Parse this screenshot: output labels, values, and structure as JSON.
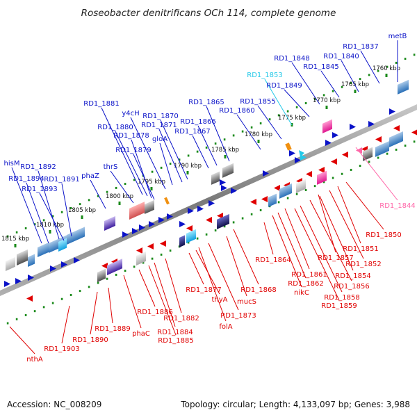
{
  "title": "Roseobacter denitrificans OCh 114, complete genome",
  "footer": {
    "accession": "Accession: NC_008209",
    "stats": "Topology: circular; Length: 4,133,097 bp; Genes: 3,988"
  },
  "colors": {
    "plus": "#0a12c8",
    "minus": "#e00000",
    "cyan": "#22c8e8",
    "pink": "#ff66a8",
    "orange": "#f09010",
    "tick": "#1a8a1a",
    "backbone": "#8a8a8a"
  },
  "scale_ticks": [
    {
      "label": "1760 kbp"
    },
    {
      "label": "1765 kbp"
    },
    {
      "label": "1770 kbp"
    },
    {
      "label": "1775 kbp"
    },
    {
      "label": "1780 kbp"
    },
    {
      "label": "1785 kbp"
    },
    {
      "label": "1790 kbp"
    },
    {
      "label": "1795 kbp"
    },
    {
      "label": "1800 kbp"
    },
    {
      "label": "1805 kbp"
    },
    {
      "label": "1810 kbp"
    },
    {
      "label": "1815 kbp"
    }
  ],
  "genes_top": [
    {
      "label": "metB",
      "color": "plus"
    },
    {
      "label": "RD1_1837",
      "color": "plus"
    },
    {
      "label": "RD1_1840",
      "color": "plus"
    },
    {
      "label": "RD1_1845",
      "color": "plus"
    },
    {
      "label": "RD1_1848",
      "color": "plus"
    },
    {
      "label": "RD1_1849",
      "color": "plus"
    },
    {
      "label": "RD1_1853",
      "color": "cyan"
    },
    {
      "label": "RD1_1855",
      "color": "plus"
    },
    {
      "label": "RD1_1860",
      "color": "plus"
    },
    {
      "label": "RD1_1865",
      "color": "plus"
    },
    {
      "label": "RD1_1866",
      "color": "plus"
    },
    {
      "label": "RD1_1867",
      "color": "plus"
    },
    {
      "label": "RD1_1870",
      "color": "plus"
    },
    {
      "label": "RD1_1871",
      "color": "plus"
    },
    {
      "label": "y4cH",
      "color": "plus"
    },
    {
      "label": "gloA",
      "color": "plus"
    },
    {
      "label": "RD1_1881",
      "color": "plus"
    },
    {
      "label": "RD1_1880",
      "color": "plus"
    },
    {
      "label": "RD1_1878",
      "color": "plus"
    },
    {
      "label": "RD1_1879",
      "color": "plus"
    },
    {
      "label": "thrS",
      "color": "plus"
    },
    {
      "label": "phaZ",
      "color": "plus"
    },
    {
      "label": "hisM",
      "color": "plus"
    },
    {
      "label": "RD1_1892",
      "color": "plus"
    },
    {
      "label": "RD1_1894",
      "color": "plus"
    },
    {
      "label": "RD1_1891",
      "color": "plus"
    },
    {
      "label": "RD1_1893",
      "color": "plus"
    }
  ],
  "genes_bottom": [
    {
      "label": "RD1_1844",
      "color": "pink"
    },
    {
      "label": "RD1_1850",
      "color": "minus"
    },
    {
      "label": "RD1_1851",
      "color": "minus"
    },
    {
      "label": "RD1_1852",
      "color": "minus"
    },
    {
      "label": "RD1_1854",
      "color": "minus"
    },
    {
      "label": "RD1_1856",
      "color": "minus"
    },
    {
      "label": "RD1_1857",
      "color": "minus"
    },
    {
      "label": "RD1_1858",
      "color": "minus"
    },
    {
      "label": "RD1_1859",
      "color": "minus"
    },
    {
      "label": "RD1_1861",
      "color": "minus"
    },
    {
      "label": "RD1_1862",
      "color": "minus"
    },
    {
      "label": "nikC",
      "color": "minus"
    },
    {
      "label": "RD1_1864",
      "color": "minus"
    },
    {
      "label": "RD1_1868",
      "color": "minus"
    },
    {
      "label": "mucS",
      "color": "minus"
    },
    {
      "label": "RD1_1873",
      "color": "minus"
    },
    {
      "label": "folA",
      "color": "minus"
    },
    {
      "label": "thyA",
      "color": "minus"
    },
    {
      "label": "RD1_1877",
      "color": "minus"
    },
    {
      "label": "RD1_1882",
      "color": "minus"
    },
    {
      "label": "RD1_1884",
      "color": "minus"
    },
    {
      "label": "RD1_1885",
      "color": "minus"
    },
    {
      "label": "RD1_1886",
      "color": "minus"
    },
    {
      "label": "phaC",
      "color": "minus"
    },
    {
      "label": "RD1_1889",
      "color": "minus"
    },
    {
      "label": "RD1_1890",
      "color": "minus"
    },
    {
      "label": "RD1_1903",
      "color": "minus"
    },
    {
      "label": "nthA",
      "color": "minus"
    }
  ]
}
